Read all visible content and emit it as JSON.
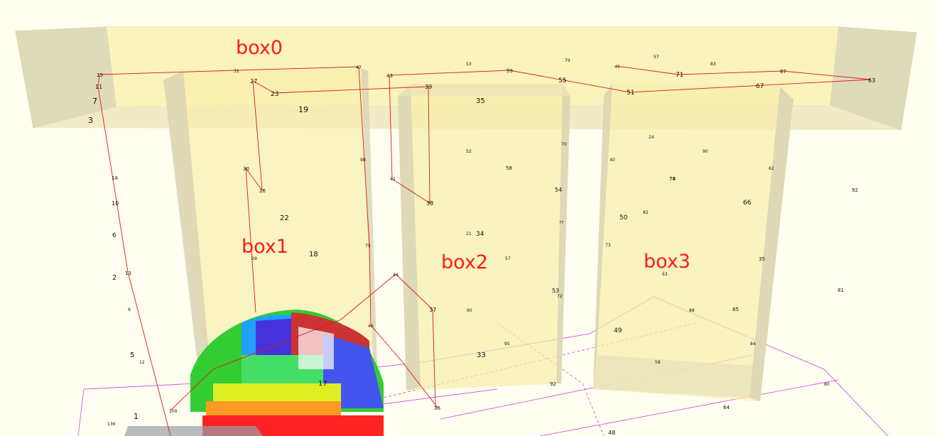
{
  "scene": {
    "background": "#fffef0",
    "box_color": "#f7eeaa",
    "path_color": "#e01818",
    "grid_color": "#cc44dd",
    "label_color": "#ff1a1a",
    "boxes": [
      {
        "id": "box0",
        "label": "box0"
      },
      {
        "id": "box1",
        "label": "box1"
      },
      {
        "id": "box2",
        "label": "box2"
      },
      {
        "id": "box3",
        "label": "box3"
      }
    ],
    "points": [
      "15",
      "31",
      "47",
      "43",
      "53",
      "59",
      "79",
      "55",
      "45",
      "57",
      "71",
      "63",
      "87",
      "83",
      "11",
      "27",
      "23",
      "39",
      "51",
      "67",
      "7",
      "19",
      "35",
      "3",
      "24",
      "70",
      "90",
      "98",
      "52",
      "40",
      "62",
      "58",
      "42",
      "30",
      "26",
      "74",
      "14",
      "10",
      "38",
      "54",
      "70",
      "66",
      "92",
      "22",
      "6",
      "50",
      "82",
      "77",
      "21",
      "34",
      "73",
      "18",
      "29",
      "75",
      "57",
      "35",
      "63",
      "2",
      "13",
      "44",
      "53",
      "81",
      "72",
      "9",
      "37",
      "60",
      "88",
      "85",
      "49",
      "33",
      "46",
      "5",
      "95",
      "84",
      "12",
      "17",
      "58",
      "92",
      "80",
      "1",
      "36",
      "100",
      "136",
      "64",
      "48"
    ]
  }
}
